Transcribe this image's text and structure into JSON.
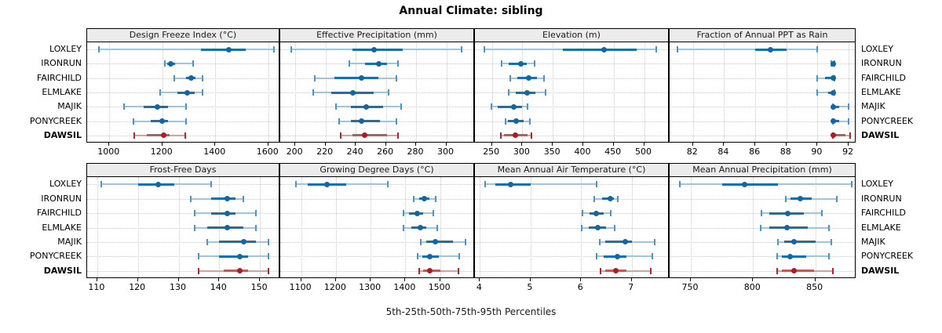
{
  "figure": {
    "title": "Annual Climate: sibling",
    "caption": "5th-25th-50th-75th-95th Percentiles",
    "site_labels": [
      "LOXLEY",
      "IRONRUN",
      "FAIRCHILD",
      "ELMLAKE",
      "MAJIK",
      "PONYCREEK",
      "DAWSIL"
    ],
    "highlight_site": "DAWSIL"
  },
  "colors": {
    "blue_dot": "#13679e",
    "blue_segment": "#1a6fae",
    "blue_whisker": "#9fc6e0",
    "blue_cap": "#4c95c4",
    "red_dot": "#a81e24",
    "red_segment": "#c05a54",
    "red_whisker": "#dba09d",
    "red_cap": "#b2272b",
    "strip_bg": "#ececec",
    "grid": "#c9c9c9",
    "border": "#000000"
  },
  "chart_data": [
    {
      "type": "errorbar-dot",
      "title": "Design Freeze Index (°C)",
      "xlim": [
        916,
        1645
      ],
      "ticks": [
        1000,
        1200,
        1400,
        1600
      ],
      "percentile_keys": [
        "p5",
        "p25",
        "p50",
        "p75",
        "p95"
      ],
      "series": [
        {
          "site": "LOXLEY",
          "values": [
            960,
            1346,
            1452,
            1515,
            1620
          ]
        },
        {
          "site": "IRONRUN",
          "values": [
            1208,
            1218,
            1232,
            1247,
            1315
          ]
        },
        {
          "site": "FAIRCHILD",
          "values": [
            1245,
            1290,
            1308,
            1325,
            1352
          ]
        },
        {
          "site": "ELMLAKE",
          "values": [
            1190,
            1258,
            1295,
            1322,
            1352
          ]
        },
        {
          "site": "MAJIK",
          "values": [
            1055,
            1130,
            1180,
            1220,
            1290
          ]
        },
        {
          "site": "PONYCREEK",
          "values": [
            1090,
            1155,
            1200,
            1220,
            1290
          ]
        },
        {
          "site": "DAWSIL",
          "values": [
            1095,
            1140,
            1205,
            1227,
            1287
          ]
        }
      ]
    },
    {
      "type": "errorbar-dot",
      "title": "Effective Precipitation (mm)",
      "xlim": [
        190,
        319
      ],
      "ticks": [
        200,
        220,
        240,
        260,
        280,
        300
      ],
      "percentile_keys": [
        "p5",
        "p25",
        "p50",
        "p75",
        "p95"
      ],
      "series": [
        {
          "site": "LOXLEY",
          "values": [
            197,
            238,
            252,
            271,
            310
          ]
        },
        {
          "site": "IRONRUN",
          "values": [
            236,
            246,
            255,
            261,
            268
          ]
        },
        {
          "site": "FAIRCHILD",
          "values": [
            213,
            226,
            244,
            255,
            267
          ]
        },
        {
          "site": "ELMLAKE",
          "values": [
            212,
            224,
            238,
            252,
            262
          ]
        },
        {
          "site": "MAJIK",
          "values": [
            227,
            237,
            247,
            258,
            270
          ]
        },
        {
          "site": "PONYCREEK",
          "values": [
            229,
            237,
            244,
            256,
            267
          ]
        },
        {
          "site": "DAWSIL",
          "values": [
            230,
            238,
            246,
            261,
            268
          ]
        }
      ]
    },
    {
      "type": "errorbar-dot",
      "title": "Elevation (m)",
      "xlim": [
        222,
        542
      ],
      "ticks": [
        250,
        300,
        350,
        400,
        450,
        500
      ],
      "percentile_keys": [
        "p5",
        "p25",
        "p50",
        "p75",
        "p95"
      ],
      "series": [
        {
          "site": "LOXLEY",
          "values": [
            238,
            366,
            434,
            488,
            520
          ]
        },
        {
          "site": "IRONRUN",
          "values": [
            266,
            278,
            298,
            307,
            320
          ]
        },
        {
          "site": "FAIRCHILD",
          "values": [
            280,
            292,
            310,
            324,
            336
          ]
        },
        {
          "site": "ELMLAKE",
          "values": [
            278,
            289,
            308,
            322,
            338
          ]
        },
        {
          "site": "MAJIK",
          "values": [
            249,
            259,
            286,
            299,
            309
          ]
        },
        {
          "site": "PONYCREEK",
          "values": [
            272,
            276,
            290,
            302,
            312
          ]
        },
        {
          "site": "DAWSIL",
          "values": [
            265,
            270,
            289,
            308,
            315
          ]
        }
      ]
    },
    {
      "type": "errorbar-dot",
      "title": "Fraction of Annual PPT as Rain",
      "xlim": [
        80.5,
        92.5
      ],
      "ticks": [
        82,
        84,
        86,
        88,
        90,
        92
      ],
      "percentile_keys": [
        "p5",
        "p25",
        "p50",
        "p75",
        "p95"
      ],
      "series": [
        {
          "site": "LOXLEY",
          "values": [
            81,
            86,
            87,
            88,
            90
          ]
        },
        {
          "site": "IRONRUN",
          "values": [
            90.9,
            91,
            91,
            91,
            91.1
          ]
        },
        {
          "site": "FAIRCHILD",
          "values": [
            90,
            90.5,
            91,
            91,
            91.1
          ]
        },
        {
          "site": "ELMLAKE",
          "values": [
            90,
            90.7,
            91,
            91,
            91.1
          ]
        },
        {
          "site": "MAJIK",
          "values": [
            91,
            91,
            91,
            91.4,
            92
          ]
        },
        {
          "site": "PONYCREEK",
          "values": [
            91,
            91,
            91,
            91.4,
            92
          ]
        },
        {
          "site": "DAWSIL",
          "values": [
            91,
            91,
            91,
            91.8,
            92.1
          ]
        }
      ]
    },
    {
      "type": "errorbar-dot",
      "title": "Frost-Free Days",
      "xlim": [
        107.5,
        155
      ],
      "ticks": [
        110,
        120,
        130,
        140,
        150
      ],
      "percentile_keys": [
        "p5",
        "p25",
        "p50",
        "p75",
        "p95"
      ],
      "series": [
        {
          "site": "LOXLEY",
          "values": [
            111,
            120,
            125,
            129,
            138
          ]
        },
        {
          "site": "IRONRUN",
          "values": [
            133,
            138,
            142,
            144,
            146
          ]
        },
        {
          "site": "FAIRCHILD",
          "values": [
            134,
            138,
            142,
            144,
            149
          ]
        },
        {
          "site": "ELMLAKE",
          "values": [
            134,
            137,
            142,
            146,
            149
          ]
        },
        {
          "site": "MAJIK",
          "values": [
            137,
            140,
            146,
            149,
            152
          ]
        },
        {
          "site": "PONYCREEK",
          "values": [
            135,
            140,
            145,
            147,
            152
          ]
        },
        {
          "site": "DAWSIL",
          "values": [
            135,
            141,
            145,
            147,
            152
          ]
        }
      ]
    },
    {
      "type": "errorbar-dot",
      "title": "Growing Degree Days (°C)",
      "xlim": [
        1040,
        1600
      ],
      "ticks": [
        1100,
        1200,
        1300,
        1400,
        1500
      ],
      "percentile_keys": [
        "p5",
        "p25",
        "p50",
        "p75",
        "p95"
      ],
      "series": [
        {
          "site": "LOXLEY",
          "values": [
            1085,
            1120,
            1175,
            1230,
            1350
          ]
        },
        {
          "site": "IRONRUN",
          "values": [
            1424,
            1440,
            1455,
            1470,
            1487
          ]
        },
        {
          "site": "FAIRCHILD",
          "values": [
            1394,
            1410,
            1435,
            1451,
            1481
          ]
        },
        {
          "site": "ELMLAKE",
          "values": [
            1394,
            1416,
            1442,
            1461,
            1491
          ]
        },
        {
          "site": "MAJIK",
          "values": [
            1444,
            1459,
            1485,
            1536,
            1573
          ]
        },
        {
          "site": "PONYCREEK",
          "values": [
            1435,
            1448,
            1469,
            1496,
            1555
          ]
        },
        {
          "site": "DAWSIL",
          "values": [
            1439,
            1451,
            1469,
            1500,
            1552
          ]
        }
      ]
    },
    {
      "type": "errorbar-dot",
      "title": "Mean Annual Air Temperature (°C)",
      "xlim": [
        3.9,
        7.75
      ],
      "ticks": [
        4,
        5,
        6,
        7
      ],
      "percentile_keys": [
        "p5",
        "p25",
        "p50",
        "p75",
        "p95"
      ],
      "series": [
        {
          "site": "LOXLEY",
          "values": [
            4.1,
            4.3,
            4.6,
            5.0,
            6.3
          ]
        },
        {
          "site": "IRONRUN",
          "values": [
            6.26,
            6.42,
            6.57,
            6.65,
            6.73
          ]
        },
        {
          "site": "FAIRCHILD",
          "values": [
            6.03,
            6.16,
            6.29,
            6.44,
            6.59
          ]
        },
        {
          "site": "ELMLAKE",
          "values": [
            6.01,
            6.15,
            6.33,
            6.49,
            6.67
          ]
        },
        {
          "site": "MAJIK",
          "values": [
            6.37,
            6.48,
            6.87,
            7.0,
            7.45
          ]
        },
        {
          "site": "PONYCREEK",
          "values": [
            6.31,
            6.45,
            6.71,
            6.9,
            7.4
          ]
        },
        {
          "site": "DAWSIL",
          "values": [
            6.38,
            6.48,
            6.69,
            6.9,
            7.37
          ]
        }
      ]
    },
    {
      "type": "errorbar-dot",
      "title": "Mean Annual Precipitation (mm)",
      "xlim": [
        733,
        883
      ],
      "ticks": [
        750,
        800,
        850
      ],
      "percentile_keys": [
        "p5",
        "p25",
        "p50",
        "p75",
        "p95"
      ],
      "series": [
        {
          "site": "LOXLEY",
          "values": [
            741,
            775,
            793,
            820,
            879
          ]
        },
        {
          "site": "IRONRUN",
          "values": [
            826,
            830,
            838,
            847,
            867
          ]
        },
        {
          "site": "FAIRCHILD",
          "values": [
            807,
            813,
            828,
            841,
            855
          ]
        },
        {
          "site": "ELMLAKE",
          "values": [
            806,
            813,
            827,
            844,
            861
          ]
        },
        {
          "site": "MAJIK",
          "values": [
            820,
            825,
            833,
            850,
            863
          ]
        },
        {
          "site": "PONYCREEK",
          "values": [
            819,
            823,
            830,
            843,
            861
          ]
        },
        {
          "site": "DAWSIL",
          "values": [
            819,
            823,
            833,
            849,
            864
          ]
        }
      ]
    }
  ]
}
